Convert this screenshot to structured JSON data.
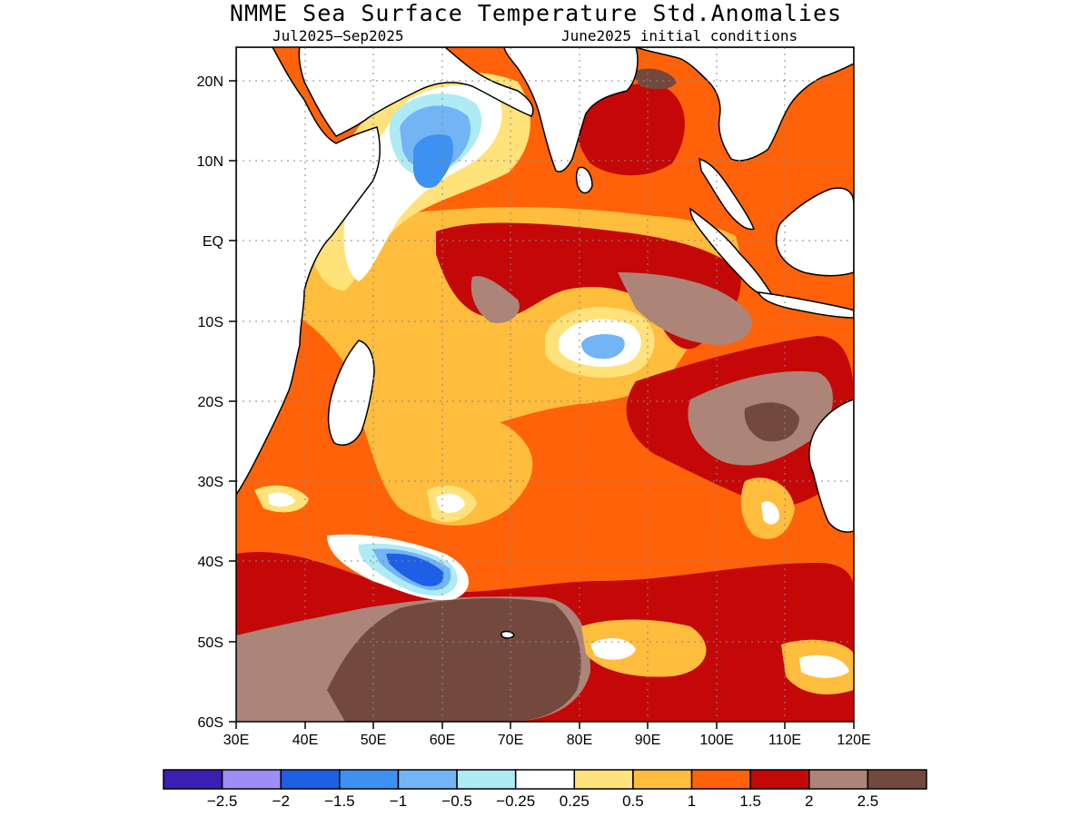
{
  "title": "NMME Sea Surface Temperature Std.Anomalies",
  "subtitle_left": "Jul2025—Sep2025",
  "subtitle_right": "June2025 initial conditions",
  "chart_data": {
    "type": "heatmap",
    "variable": "Sea Surface Temperature Std.Anomalies",
    "lon_range": [
      30,
      120
    ],
    "lat_range": [
      -60,
      24
    ],
    "x_ticks": [
      "30E",
      "40E",
      "50E",
      "60E",
      "70E",
      "80E",
      "90E",
      "100E",
      "110E",
      "120E"
    ],
    "y_ticks": [
      "20N",
      "10N",
      "EQ",
      "10S",
      "20S",
      "30S",
      "40S",
      "50S",
      "60S"
    ],
    "grid": true,
    "colorbar": {
      "colors": [
        "#3b1fb5",
        "#9e8df5",
        "#1e5fe6",
        "#3d91f2",
        "#73b4f5",
        "#aeebf5",
        "#ffffff",
        "#ffe27a",
        "#ffbd3d",
        "#ff6208",
        "#c40808",
        "#ad8478",
        "#74493d"
      ],
      "labels": [
        "-2.5",
        "-2",
        "-1.5",
        "-1",
        "-0.5",
        "-0.25",
        "0.25",
        "0.5",
        "1",
        "1.5",
        "2",
        "2.5"
      ]
    },
    "regions": [
      {
        "name": "Southern Ocean south of 45S",
        "anomaly_level": 2.5
      },
      {
        "name": "Central Indian Ocean near Equator",
        "anomaly_level": 2.0
      },
      {
        "name": "Arabian Sea",
        "anomaly_level": -1.0
      },
      {
        "name": "Around 12S 85E",
        "anomaly_level": -0.5
      },
      {
        "name": "South of Africa 42S 55E",
        "anomaly_level": -1.5
      },
      {
        "name": "Southeast Indian Ocean 20S-35S 90E-110E",
        "anomaly_level": 2.0
      }
    ]
  }
}
